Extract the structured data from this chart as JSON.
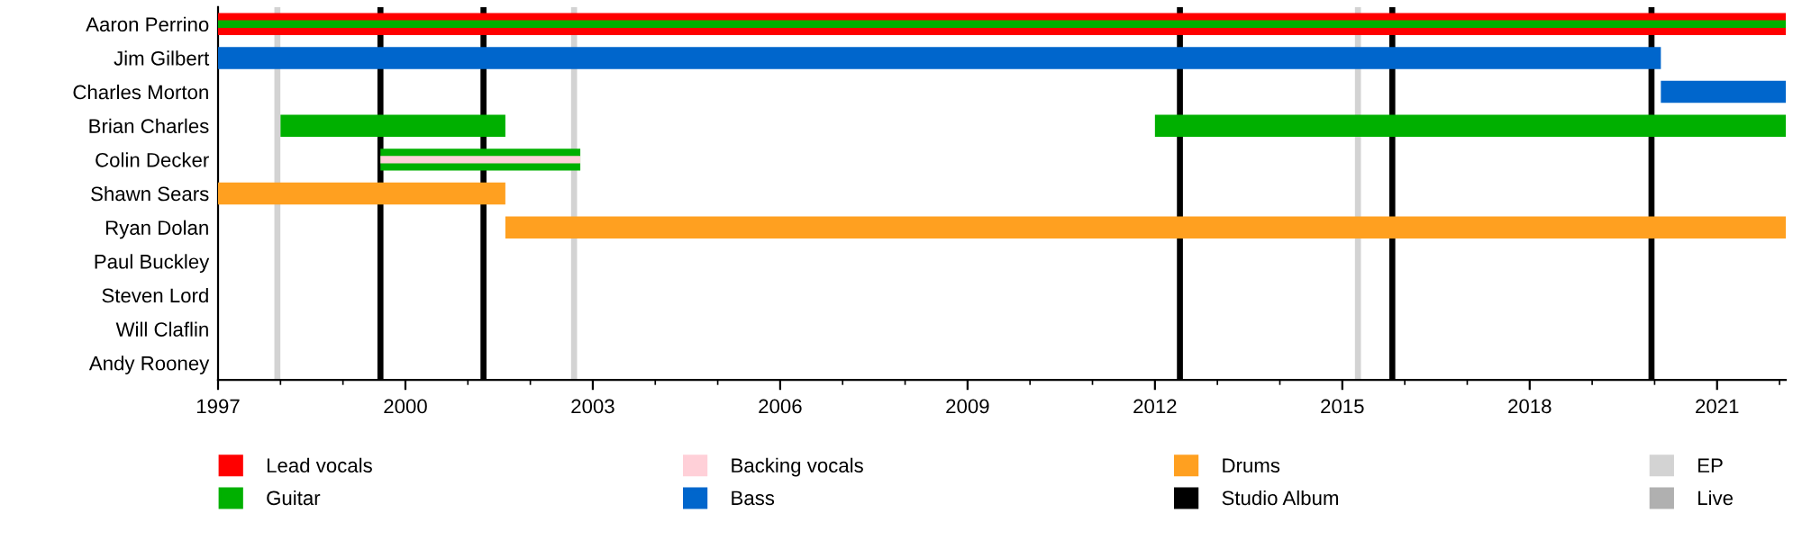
{
  "chart_data": {
    "type": "bar",
    "orientation": "horizontal",
    "legend": "bottom",
    "grid": false,
    "categories": [
      "Aaron Perrino",
      "Jim Gilbert",
      "Charles Morton",
      "Brian Charles",
      "Colin Decker",
      "Shawn Sears",
      "Ryan Dolan",
      "Paul Buckley",
      "Steven Lord",
      "Will Claflin",
      "Andy Rooney"
    ],
    "series": [
      {
        "name": "Lead vocals",
        "color": "#ff0000",
        "base": [
          1997,
          null,
          null,
          null,
          null,
          null,
          null,
          null,
          null,
          null,
          null
        ],
        "values": [
          25.1,
          null,
          null,
          null,
          null,
          null,
          null,
          null,
          null,
          null,
          null
        ]
      },
      {
        "name": "Guitar",
        "color": "#00b000",
        "base": [
          1997,
          null,
          null,
          1998,
          1999.6,
          null,
          null,
          null,
          null,
          null,
          null
        ],
        "values": [
          25.1,
          null,
          null,
          3.6,
          3.2,
          null,
          null,
          null,
          null,
          null,
          null
        ]
      },
      {
        "name": "Backing vocals",
        "color": "#ffd0d8",
        "base": [
          null,
          null,
          null,
          null,
          1999.6,
          null,
          null,
          null,
          null,
          null,
          null
        ],
        "values": [
          null,
          null,
          null,
          null,
          3.2,
          null,
          null,
          null,
          null,
          null,
          null
        ]
      },
      {
        "name": "Bass",
        "color": "#0066cc",
        "base": [
          null,
          1997,
          2020.1,
          null,
          null,
          null,
          null,
          null,
          null,
          null,
          null
        ],
        "values": [
          null,
          23.1,
          2.0,
          null,
          null,
          null,
          null,
          null,
          null,
          null,
          null
        ]
      },
      {
        "name": "Drums",
        "color": "#ffa020",
        "base": [
          null,
          null,
          null,
          null,
          null,
          1997,
          2001.6,
          null,
          null,
          null,
          null
        ],
        "values": [
          null,
          null,
          null,
          null,
          null,
          4.6,
          20.5,
          null,
          null,
          null,
          null
        ]
      },
      {
        "color": "#00b000",
        "base": [
          null,
          null,
          null,
          2012,
          null,
          null,
          null,
          null,
          null,
          null,
          null
        ],
        "values": [
          null,
          null,
          null,
          10.1,
          null,
          null,
          null,
          null,
          null,
          null,
          null
        ]
      }
    ],
    "ref_lines": [
      {
        "axis": "x",
        "value": 1999.6,
        "label": "Studio Album",
        "color": "#000000"
      },
      {
        "axis": "x",
        "value": 2001.25,
        "color": "#000000"
      },
      {
        "axis": "x",
        "value": 2012.4,
        "color": "#000000"
      },
      {
        "axis": "x",
        "value": 2015.8,
        "color": "#000000"
      },
      {
        "axis": "x",
        "value": 2019.95,
        "color": "#000000"
      },
      {
        "axis": "x",
        "value": 1997.95,
        "label": "EP",
        "color": "#d3d3d3"
      },
      {
        "axis": "x",
        "value": 2002.7,
        "color": "#d3d3d3"
      },
      {
        "axis": "x",
        "value": 2015.25,
        "color": "#d3d3d3"
      },
      {
        "axis": "x",
        "value": null,
        "label": "Live",
        "color": "#b0b0b0"
      }
    ],
    "xlim": [
      1997,
      2022.1
    ],
    "xticks": [
      1997,
      2000,
      2003,
      2006,
      2009,
      2012,
      2015,
      2018,
      2021
    ]
  }
}
